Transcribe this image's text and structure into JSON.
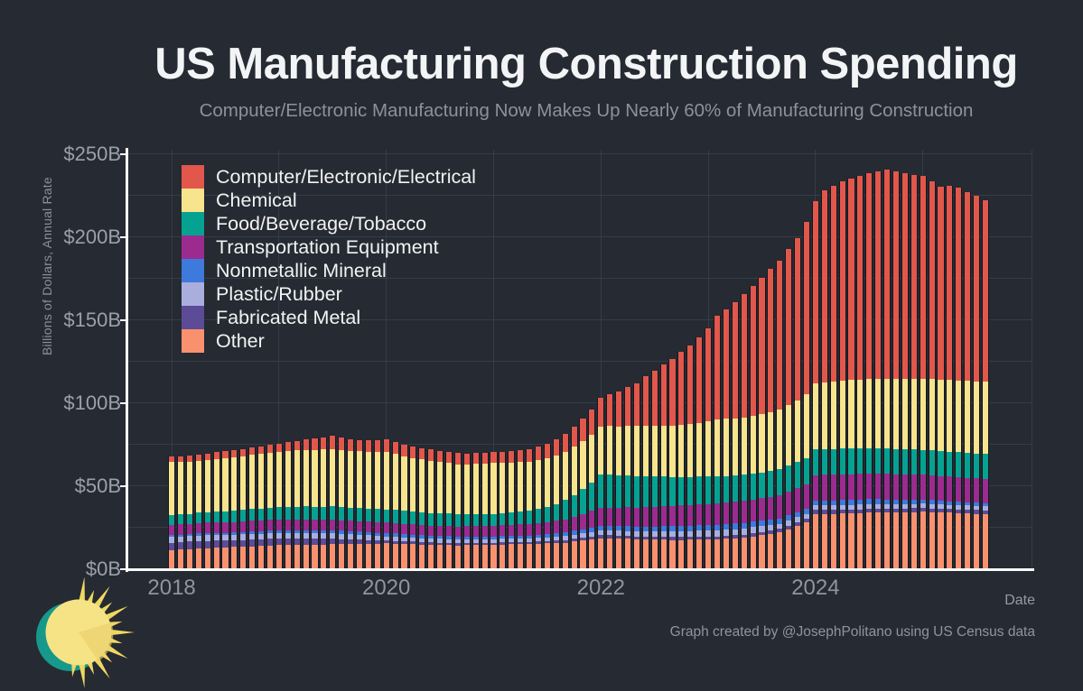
{
  "header": {
    "title": "US Manufacturing Construction Spending",
    "subtitle": "Computer/Electronic Manufacturing Now Makes Up Nearly 60% of Manufacturing Construction"
  },
  "axes": {
    "y_label": "Billions of Dollars, Annual Rate",
    "x_label": "Date",
    "y_tick_labels": [
      "$0B",
      "$50B",
      "$100B",
      "$150B",
      "$200B",
      "$250B"
    ],
    "x_tick_labels": [
      "2018",
      "2020",
      "2022",
      "2024"
    ]
  },
  "footer": {
    "credit": "Graph created by @JosephPolitano using US Census data"
  },
  "logo": {
    "name": "sun-logo",
    "sun_color": "#F6E385",
    "ray_color": "#F0D860",
    "crescent_color": "#16998B"
  },
  "colors": {
    "background": "#252A33",
    "gridline": "#363C48",
    "axis": "#FAFAFA",
    "title_text": "#F3F4F5",
    "muted_text": "#8E959F"
  },
  "chart_data": {
    "type": "bar",
    "stacked": true,
    "title": "US Manufacturing Construction Spending",
    "xlabel": "Date",
    "ylabel": "Billions of Dollars, Annual Rate",
    "ylim": [
      0,
      252
    ],
    "y_gridline_interval_billions": 25,
    "x_monthly_range": [
      "2018-01",
      "2025-08"
    ],
    "x_tick_years": [
      2018,
      2020,
      2022,
      2024
    ],
    "grid": true,
    "legend_position": "top-left",
    "units": "billions of dollars, annual rate",
    "stack_order_bottom_to_top": [
      "Other",
      "Fabricated Metal",
      "Plastic/Rubber",
      "Nonmetallic Mineral",
      "Transportation Equipment",
      "Food/Beverage/Tobacco",
      "Chemical",
      "Computer/Electronic/Electrical"
    ],
    "series": [
      {
        "name": "Computer/Electronic/Electrical",
        "color": "#E2574B",
        "values": [
          3.4,
          3.5,
          3.7,
          3.8,
          3.9,
          4.1,
          4.2,
          4.4,
          4.5,
          4.7,
          4.8,
          5.0,
          5.2,
          5.3,
          5.5,
          6.1,
          6.8,
          7.4,
          8.0,
          7.5,
          7.0,
          6.5,
          6.8,
          7.2,
          7.5,
          7.3,
          7.2,
          7.0,
          6.9,
          6.9,
          6.8,
          6.7,
          6.6,
          6.5,
          6.5,
          6.6,
          6.6,
          6.8,
          7.1,
          7.3,
          7.5,
          8.3,
          9.0,
          10.0,
          11.0,
          12.0,
          13.5,
          15.0,
          17.2,
          19.1,
          21.0,
          23.5,
          26.0,
          29.7,
          33.3,
          37.0,
          40.3,
          43.7,
          47.0,
          51.5,
          56.0,
          62.5,
          66.3,
          70.0,
          74.0,
          78.0,
          82.0,
          86.0,
          90.0,
          94.0,
          98.0,
          104.0,
          110.0,
          116.0,
          118.0,
          120.0,
          121.3,
          122.7,
          124.0,
          125.0,
          126.0,
          125.0,
          124.0,
          123.0,
          122.0,
          119.0,
          116.0,
          117.0,
          116.0,
          114.0,
          112.0,
          109.6
        ]
      },
      {
        "name": "Chemical",
        "color": "#F8E48C",
        "values": [
          32.2,
          31.8,
          31.4,
          31.0,
          31.3,
          31.7,
          32.0,
          32.2,
          32.4,
          32.6,
          32.8,
          33.0,
          33.3,
          33.7,
          34.0,
          34.1,
          34.3,
          34.4,
          34.5,
          34.3,
          34.2,
          34.0,
          34.2,
          34.3,
          34.5,
          33.7,
          32.8,
          32.0,
          31.7,
          31.3,
          31.0,
          30.7,
          30.3,
          30.0,
          30.2,
          30.3,
          30.5,
          30.3,
          30.0,
          29.8,
          29.5,
          29.4,
          29.3,
          29.1,
          29.0,
          29.0,
          29.0,
          29.0,
          29.0,
          29.3,
          29.5,
          29.8,
          30.0,
          30.3,
          30.5,
          30.8,
          31.0,
          31.5,
          32.0,
          32.5,
          33.0,
          34.2,
          34.3,
          34.4,
          34.5,
          34.9,
          35.3,
          35.6,
          36.0,
          36.5,
          37.0,
          38.4,
          39.7,
          40.1,
          40.6,
          41.0,
          41.2,
          41.5,
          41.7,
          41.9,
          42.1,
          42.3,
          42.5,
          42.6,
          42.8,
          42.9,
          43.0,
          43.1,
          43.2,
          43.2,
          43.3,
          43.4
        ]
      },
      {
        "name": "Food/Beverage/Tobacco",
        "color": "#06A291",
        "values": [
          5.8,
          5.9,
          6.0,
          6.2,
          6.3,
          6.4,
          6.5,
          6.7,
          6.8,
          7.0,
          7.2,
          7.3,
          7.5,
          7.6,
          7.7,
          7.8,
          7.8,
          7.9,
          8.0,
          8.0,
          8.0,
          8.0,
          8.0,
          8.0,
          8.0,
          7.9,
          7.8,
          7.8,
          7.7,
          7.6,
          7.5,
          7.5,
          7.4,
          7.4,
          7.3,
          7.3,
          7.2,
          7.4,
          7.6,
          7.8,
          8.0,
          8.7,
          9.3,
          10.0,
          11.5,
          13.0,
          15.0,
          17.0,
          20.0,
          19.8,
          19.5,
          19.3,
          19.0,
          18.6,
          18.3,
          17.9,
          17.5,
          17.3,
          17.0,
          16.8,
          16.5,
          16.3,
          16.1,
          16.0,
          15.8,
          15.7,
          15.5,
          15.5,
          15.5,
          15.6,
          15.6,
          15.6,
          15.6,
          15.6,
          15.5,
          15.5,
          15.5,
          15.4,
          15.4,
          15.3,
          15.3,
          15.2,
          15.1,
          15.1,
          15.0,
          15.0,
          15.0,
          15.0,
          15.0,
          15.1,
          15.1,
          15.1
        ]
      },
      {
        "name": "Transportation Equipment",
        "color": "#9C2B8F",
        "values": [
          6.0,
          6.1,
          6.1,
          6.2,
          6.2,
          6.3,
          6.3,
          6.3,
          6.4,
          6.4,
          6.4,
          6.5,
          6.5,
          6.5,
          6.5,
          6.6,
          6.6,
          6.6,
          6.6,
          6.5,
          6.5,
          6.4,
          6.3,
          6.3,
          6.2,
          6.2,
          6.1,
          6.1,
          6.1,
          6.0,
          6.0,
          6.1,
          6.1,
          6.2,
          6.3,
          6.3,
          6.4,
          6.5,
          6.6,
          6.7,
          6.8,
          6.9,
          7.0,
          7.5,
          8.0,
          8.5,
          9.3,
          10.1,
          10.9,
          11.1,
          11.2,
          11.4,
          11.5,
          11.7,
          11.9,
          12.0,
          12.2,
          12.3,
          12.5,
          12.6,
          12.8,
          12.9,
          13.0,
          13.1,
          13.3,
          13.4,
          13.5,
          13.8,
          14.1,
          14.5,
          14.8,
          15.1,
          15.4,
          15.4,
          15.4,
          15.4,
          15.4,
          15.4,
          15.4,
          15.3,
          15.3,
          15.2,
          15.1,
          15.1,
          15.0,
          15.0,
          14.9,
          14.9,
          14.8,
          14.7,
          14.6,
          14.5
        ]
      },
      {
        "name": "Nonmetallic Mineral",
        "color": "#3E79DC",
        "values": [
          1.3,
          1.3,
          1.3,
          1.4,
          1.4,
          1.4,
          1.4,
          1.4,
          1.4,
          1.5,
          1.5,
          1.5,
          1.5,
          1.5,
          1.5,
          1.6,
          1.6,
          1.6,
          1.6,
          1.7,
          1.7,
          1.8,
          1.9,
          1.9,
          2.0,
          2.0,
          2.0,
          1.9,
          1.9,
          1.9,
          1.9,
          1.9,
          1.8,
          1.8,
          1.8,
          1.7,
          1.7,
          1.7,
          1.7,
          1.8,
          1.8,
          1.8,
          1.8,
          2.0,
          2.1,
          2.3,
          2.4,
          2.6,
          2.7,
          2.8,
          2.8,
          2.9,
          2.9,
          3.0,
          3.0,
          3.1,
          3.1,
          3.2,
          3.2,
          3.3,
          3.3,
          3.4,
          3.4,
          3.4,
          3.4,
          3.3,
          3.3,
          3.2,
          3.1,
          3.0,
          2.9,
          2.8,
          2.7,
          2.8,
          2.9,
          3.0,
          3.1,
          3.1,
          3.2,
          3.1,
          3.0,
          2.8,
          2.7,
          2.6,
          2.5,
          2.4,
          2.3,
          2.2,
          2.1,
          2.0,
          1.9,
          1.8
        ]
      },
      {
        "name": "Plastic/Rubber",
        "color": "#A9AEDC",
        "values": [
          3.3,
          3.3,
          3.3,
          3.4,
          3.4,
          3.4,
          3.4,
          3.4,
          3.4,
          3.5,
          3.5,
          3.5,
          3.5,
          3.5,
          3.5,
          3.5,
          3.4,
          3.4,
          3.4,
          3.3,
          3.1,
          3.0,
          2.8,
          2.7,
          2.5,
          2.5,
          2.4,
          2.4,
          2.4,
          2.3,
          2.3,
          2.3,
          2.2,
          2.2,
          2.2,
          2.1,
          2.1,
          2.1,
          2.2,
          2.2,
          2.2,
          2.3,
          2.3,
          2.4,
          2.4,
          2.5,
          2.6,
          2.6,
          2.7,
          2.8,
          2.9,
          3.0,
          3.0,
          3.1,
          3.2,
          3.3,
          3.4,
          3.5,
          3.5,
          3.6,
          3.7,
          3.8,
          3.7,
          3.7,
          3.6,
          3.6,
          3.5,
          3.4,
          3.2,
          3.1,
          2.9,
          2.8,
          2.7,
          2.7,
          2.7,
          2.8,
          2.8,
          2.8,
          2.8,
          2.8,
          2.7,
          2.7,
          2.7,
          2.6,
          2.6,
          2.6,
          2.6,
          2.5,
          2.5,
          2.5,
          2.5,
          2.5
        ]
      },
      {
        "name": "Fabricated Metal",
        "color": "#5C4B97",
        "values": [
          4.5,
          4.5,
          4.4,
          4.4,
          4.3,
          4.3,
          4.2,
          4.1,
          4.1,
          4.0,
          3.9,
          3.9,
          3.8,
          3.7,
          3.6,
          3.5,
          3.4,
          3.3,
          3.2,
          3.0,
          2.7,
          2.5,
          2.3,
          2.0,
          1.8,
          1.7,
          1.6,
          1.6,
          1.5,
          1.4,
          1.3,
          1.3,
          1.2,
          1.2,
          1.2,
          1.1,
          1.1,
          1.2,
          1.2,
          1.3,
          1.3,
          1.4,
          1.4,
          1.5,
          1.6,
          1.7,
          1.7,
          1.8,
          1.9,
          1.9,
          1.9,
          1.8,
          1.8,
          1.8,
          1.8,
          1.8,
          1.8,
          1.8,
          1.8,
          1.8,
          1.8,
          1.8,
          1.8,
          1.8,
          1.9,
          1.9,
          1.9,
          2.0,
          2.2,
          2.3,
          2.5,
          2.6,
          2.7,
          2.6,
          2.5,
          2.4,
          2.3,
          2.2,
          2.1,
          2.1,
          2.2,
          2.2,
          2.2,
          2.3,
          2.3,
          2.3,
          2.3,
          2.3,
          2.3,
          2.3,
          2.3,
          2.3
        ]
      },
      {
        "name": "Other",
        "color": "#F9916F",
        "values": [
          11.5,
          11.8,
          12.2,
          12.5,
          12.7,
          12.8,
          13.0,
          13.3,
          13.5,
          13.8,
          14.0,
          14.3,
          14.5,
          14.6,
          14.7,
          14.8,
          14.8,
          14.9,
          15.0,
          15.1,
          15.2,
          15.3,
          15.3,
          15.4,
          15.5,
          15.3,
          15.2,
          15.0,
          14.8,
          14.7,
          14.6,
          14.4,
          14.3,
          14.5,
          14.6,
          14.8,
          14.9,
          14.9,
          15.0,
          15.0,
          15.0,
          15.3,
          15.5,
          15.8,
          16.0,
          16.7,
          17.3,
          18.0,
          18.6,
          18.5,
          18.3,
          18.2,
          18.0,
          17.9,
          17.8,
          17.7,
          17.6,
          17.6,
          17.7,
          17.7,
          17.8,
          17.8,
          18.2,
          18.6,
          19.0,
          19.8,
          20.5,
          21.3,
          22.0,
          24.0,
          26.0,
          28.0,
          33.2,
          33.3,
          33.4,
          33.5,
          33.7,
          33.9,
          34.1,
          34.2,
          34.2,
          34.3,
          34.4,
          34.4,
          34.5,
          34.3,
          34.1,
          34.0,
          33.8,
          33.6,
          33.4,
          33.2
        ]
      }
    ]
  }
}
